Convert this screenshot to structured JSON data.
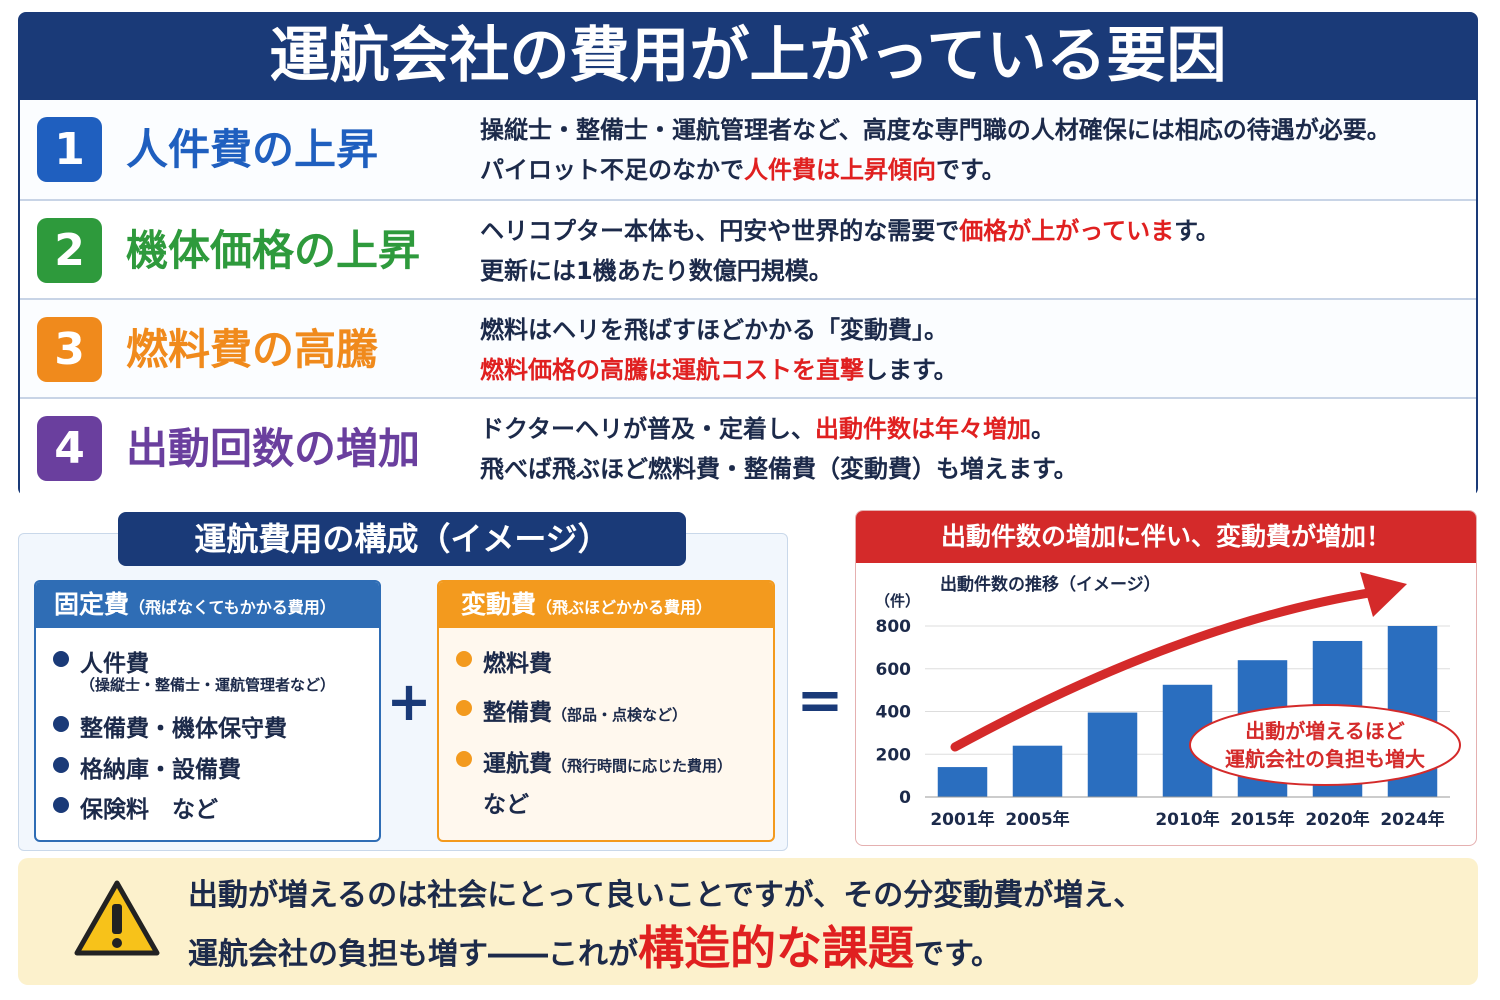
{
  "header": {
    "title": "運航会社の費用が上がっている要因"
  },
  "factors": [
    {
      "number": 1,
      "title": "人件費の上昇",
      "color": "#1f5fbf",
      "lines": [
        [
          {
            "text": "操縦士・整備士・運航管理者など、高度な専門職の人材確保には相応の待遇が必要。"
          }
        ],
        [
          {
            "text": "パイロット不足のなかで"
          },
          {
            "text": "人件費は上昇傾向",
            "highlight": true
          },
          {
            "text": "です。"
          }
        ]
      ]
    },
    {
      "number": 2,
      "title": "機体価格の上昇",
      "color": "#2e9a3c",
      "lines": [
        [
          {
            "text": "ヘリコプター本体も、円安や世界的な需要で"
          },
          {
            "text": "価格が上がっていま",
            "highlight": true
          },
          {
            "text": "す。"
          }
        ],
        [
          {
            "text": "更新には1機あたり数億円規模。"
          }
        ]
      ]
    },
    {
      "number": 3,
      "title": "燃料費の高騰",
      "color": "#f08a1c",
      "lines": [
        [
          {
            "text": "燃料はヘリを飛ばすほどかかる「変動費」。"
          }
        ],
        [
          {
            "text": "燃料価格の高騰は運航コストを直撃",
            "highlight": true
          },
          {
            "text": "します。"
          }
        ]
      ]
    },
    {
      "number": 4,
      "title": "出動回数の増加",
      "color": "#6a3f9e",
      "lines": [
        [
          {
            "text": "ドクターヘリが普及・定着し、"
          },
          {
            "text": "出動件数は年々増加",
            "highlight": true
          },
          {
            "text": "。"
          }
        ],
        [
          {
            "text": "飛べば飛ぶほど燃料費・整備費（変動費）も増えます。"
          }
        ]
      ]
    }
  ],
  "composition": {
    "title": "運航費用の構成（イメージ）",
    "fixed": {
      "title": "固定費",
      "note": "（飛ばなくてもかかる費用）",
      "items": [
        {
          "text": "人件費",
          "sub": "（操縦士・整備士・運航管理者など）"
        },
        {
          "text": "整備費・機体保守費"
        },
        {
          "text": "格納庫・設備費"
        },
        {
          "text": "保険料　など"
        }
      ]
    },
    "plus": "+",
    "variable": {
      "title": "変動費",
      "note": "（飛ぶほどかかる費用）",
      "items": [
        {
          "text": "燃料費"
        },
        {
          "text": "整備費",
          "note": "（部品・点検など）"
        },
        {
          "text": "運航費",
          "note": "（飛行時間に応じた費用）"
        }
      ],
      "tail": "など"
    },
    "equals": "="
  },
  "chart_data": {
    "type": "bar",
    "banner": "出動件数の増加に伴い、変動費が増加！",
    "title": "出動件数の推移（イメージ）",
    "ylabel": "（件）",
    "categories": [
      "2001年",
      "2005年",
      null,
      "2010年",
      "2015年",
      "2020年",
      "2024年"
    ],
    "values": [
      140,
      240,
      395,
      525,
      640,
      730,
      800
    ],
    "color": "#2a6ebf",
    "ylim": [
      0,
      800
    ],
    "yticks": [
      0,
      200,
      400,
      600,
      800
    ],
    "grid": true,
    "annotation": [
      "出動が増えるほど",
      "運航会社の負担も増大"
    ]
  },
  "footer": {
    "lines": [
      [
        {
          "text": "出動が増えるのは社会にとって良いことですが、その分変動費が増え、"
        }
      ],
      [
        {
          "text": "運航会社の負担も増す――これが"
        },
        {
          "text": "構造的な課題",
          "highlight": true
        },
        {
          "text": "です。"
        }
      ]
    ]
  }
}
